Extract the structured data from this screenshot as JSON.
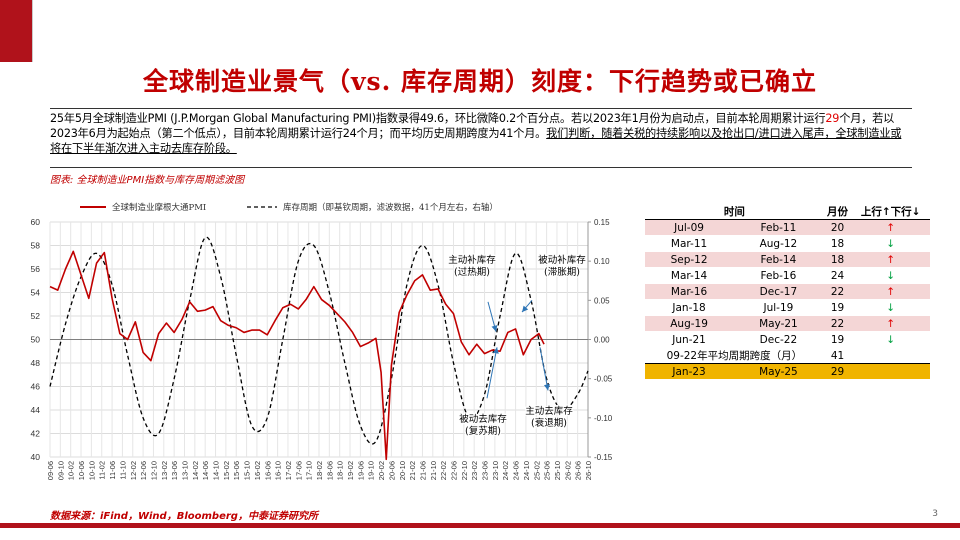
{
  "title": "全球制造业景气（vs. 库存周期）刻度：下行趋势或已确立",
  "summary": {
    "part1": "25年5月全球制造业PMI (J.P.Morgan Global Manufacturing PMI)指数录得49.6，环比微降0.2个百分点。若以2023年1月份为启动点，目前本轮周期累计运行",
    "highlight": "29",
    "part2": "个月，若以2023年6月为起始点（第二个低点），目前本轮周期累计运行24个月；而平均历史周期跨度为41个月。",
    "underlined": "我们判断，随着关税的持续影响以及抢出口/进口进入尾声，全球制造业或将在下半年渐次进入主动去库存阶段。"
  },
  "caption": "图表:  全球制造业PMI指数与库存周期滤波图",
  "source": "数据来源：iFind，Wind，Bloomberg，中泰证券研究所",
  "page_number": "3",
  "colors": {
    "accent": "#b0121b",
    "pmi_line": "#c00000",
    "cycle_line": "#000000",
    "table_odd": "#f4d6d6",
    "table_highlight": "#f0b400"
  },
  "chart_data": {
    "type": "line",
    "legend_position": "top",
    "grid": true,
    "series": [
      {
        "name": "全球制造业摩根大通PMI",
        "axis": "left",
        "x": [
          "2009-06",
          "2009-09",
          "2009-12",
          "2010-03",
          "2010-06",
          "2010-09",
          "2010-12",
          "2011-03",
          "2011-06",
          "2011-09",
          "2011-12",
          "2012-03",
          "2012-06",
          "2012-09",
          "2012-12",
          "2013-03",
          "2013-06",
          "2013-09",
          "2013-12",
          "2014-03",
          "2014-06",
          "2014-09",
          "2014-12",
          "2015-03",
          "2015-06",
          "2015-09",
          "2015-12",
          "2016-03",
          "2016-06",
          "2016-09",
          "2016-12",
          "2017-03",
          "2017-06",
          "2017-09",
          "2017-12",
          "2018-03",
          "2018-06",
          "2018-09",
          "2018-12",
          "2019-03",
          "2019-06",
          "2019-09",
          "2019-12",
          "2020-02",
          "2020-04",
          "2020-06",
          "2020-09",
          "2020-12",
          "2021-03",
          "2021-06",
          "2021-09",
          "2021-12",
          "2022-03",
          "2022-06",
          "2022-09",
          "2022-12",
          "2023-03",
          "2023-06",
          "2023-09",
          "2023-12",
          "2024-03",
          "2024-06",
          "2024-09",
          "2024-12",
          "2025-03",
          "2025-05"
        ],
        "values": [
          54.5,
          54.2,
          56.0,
          57.5,
          55.5,
          53.5,
          56.5,
          57.4,
          53.5,
          50.5,
          50.0,
          51.5,
          48.9,
          48.2,
          50.5,
          51.4,
          50.6,
          51.7,
          53.2,
          52.4,
          52.5,
          52.8,
          51.6,
          51.2,
          51.0,
          50.6,
          50.8,
          50.8,
          50.4,
          51.6,
          52.7,
          53.0,
          52.6,
          53.4,
          54.5,
          53.4,
          52.9,
          52.2,
          51.5,
          50.6,
          49.4,
          49.7,
          50.1,
          47.2,
          39.8,
          47.8,
          52.3,
          53.8,
          55.0,
          55.5,
          54.2,
          54.3,
          53.0,
          52.2,
          49.8,
          48.7,
          49.6,
          48.8,
          49.1,
          49.0,
          50.6,
          50.9,
          48.7,
          50.0,
          50.5,
          49.6
        ]
      },
      {
        "name": "库存周期（即基钦周期，滤波数据，41个月左右，右轴）",
        "axis": "right",
        "x": [
          "2009-06",
          "2009-12",
          "2010-06",
          "2010-12",
          "2011-06",
          "2011-12",
          "2012-06",
          "2012-12",
          "2013-06",
          "2013-12",
          "2014-06",
          "2014-12",
          "2015-06",
          "2015-12",
          "2016-06",
          "2016-12",
          "2017-06",
          "2017-12",
          "2018-06",
          "2018-12",
          "2019-06",
          "2019-12",
          "2020-06",
          "2020-12",
          "2021-06",
          "2021-12",
          "2022-06",
          "2022-12",
          "2023-06",
          "2023-12",
          "2024-06",
          "2024-12",
          "2025-06",
          "2025-12",
          "2026-06",
          "2026-10"
        ],
        "values": [
          -0.06,
          0.02,
          0.08,
          0.11,
          0.07,
          -0.02,
          -0.1,
          -0.12,
          -0.05,
          0.05,
          0.13,
          0.08,
          -0.02,
          -0.11,
          -0.1,
          0.0,
          0.1,
          0.12,
          0.06,
          -0.03,
          -0.11,
          -0.13,
          -0.05,
          0.07,
          0.12,
          0.07,
          -0.03,
          -0.1,
          -0.07,
          0.03,
          0.11,
          0.05,
          -0.05,
          -0.09,
          -0.07,
          -0.04
        ]
      }
    ],
    "y_left": {
      "min": 40,
      "max": 60,
      "ticks": [
        "40",
        "42",
        "44",
        "46",
        "48",
        "50",
        "52",
        "54",
        "56",
        "58",
        "60"
      ]
    },
    "y_right": {
      "min": -0.15,
      "max": 0.15,
      "ticks": [
        "-0.15",
        "-0.10",
        "-0.05",
        "0.00",
        "0.05",
        "0.10",
        "0.15"
      ]
    },
    "x_ticks": [
      "09-06",
      "09-10",
      "10-02",
      "10-06",
      "10-10",
      "11-02",
      "11-06",
      "11-10",
      "12-02",
      "12-06",
      "12-10",
      "13-02",
      "13-06",
      "13-10",
      "14-02",
      "14-06",
      "14-10",
      "15-02",
      "15-06",
      "15-10",
      "16-02",
      "16-06",
      "16-10",
      "17-02",
      "17-06",
      "17-10",
      "18-02",
      "18-06",
      "18-10",
      "19-02",
      "19-06",
      "19-10",
      "20-02",
      "20-06",
      "20-10",
      "21-02",
      "21-06",
      "21-10",
      "22-02",
      "22-06",
      "22-10",
      "23-02",
      "23-06",
      "23-10",
      "24-02",
      "24-06",
      "24-10",
      "25-02",
      "25-06",
      "25-10",
      "26-02",
      "26-06",
      "26-10"
    ],
    "annotations": [
      {
        "text_lines": [
          "主动补库存",
          "(过热期)"
        ],
        "near": "2024-03",
        "level": 0.09
      },
      {
        "text_lines": [
          "被动补库存",
          "(滞胀期)"
        ],
        "near": "2025-09",
        "level": 0.09
      },
      {
        "text_lines": [
          "被动去库存",
          "(复苏期)"
        ],
        "near": "2024-03",
        "level": -0.1
      },
      {
        "text_lines": [
          "主动去库存",
          "(衰退期)"
        ],
        "near": "2025-09",
        "level": -0.085
      }
    ]
  },
  "table": {
    "headers": [
      "时间",
      "月份",
      "上行↑下行↓"
    ],
    "rows": [
      {
        "start": "Jul-09",
        "end": "Feb-11",
        "months": "20",
        "dir": "↑",
        "type": "up"
      },
      {
        "start": "Mar-11",
        "end": "Aug-12",
        "months": "18",
        "dir": "↓",
        "type": "down"
      },
      {
        "start": "Sep-12",
        "end": "Feb-14",
        "months": "18",
        "dir": "↑",
        "type": "up"
      },
      {
        "start": "Mar-14",
        "end": "Feb-16",
        "months": "24",
        "dir": "↓",
        "type": "down"
      },
      {
        "start": "Mar-16",
        "end": "Dec-17",
        "months": "22",
        "dir": "↑",
        "type": "up"
      },
      {
        "start": "Jan-18",
        "end": "Jul-19",
        "months": "19",
        "dir": "↓",
        "type": "down"
      },
      {
        "start": "Aug-19",
        "end": "May-21",
        "months": "22",
        "dir": "↑",
        "type": "up"
      },
      {
        "start": "Jun-21",
        "end": "Dec-22",
        "months": "19",
        "dir": "↓",
        "type": "down"
      }
    ],
    "avg_label": "09-22年平均周期跨度（月）",
    "avg_value": "41",
    "current": {
      "start": "Jan-23",
      "end": "May-25",
      "months": "29"
    }
  }
}
